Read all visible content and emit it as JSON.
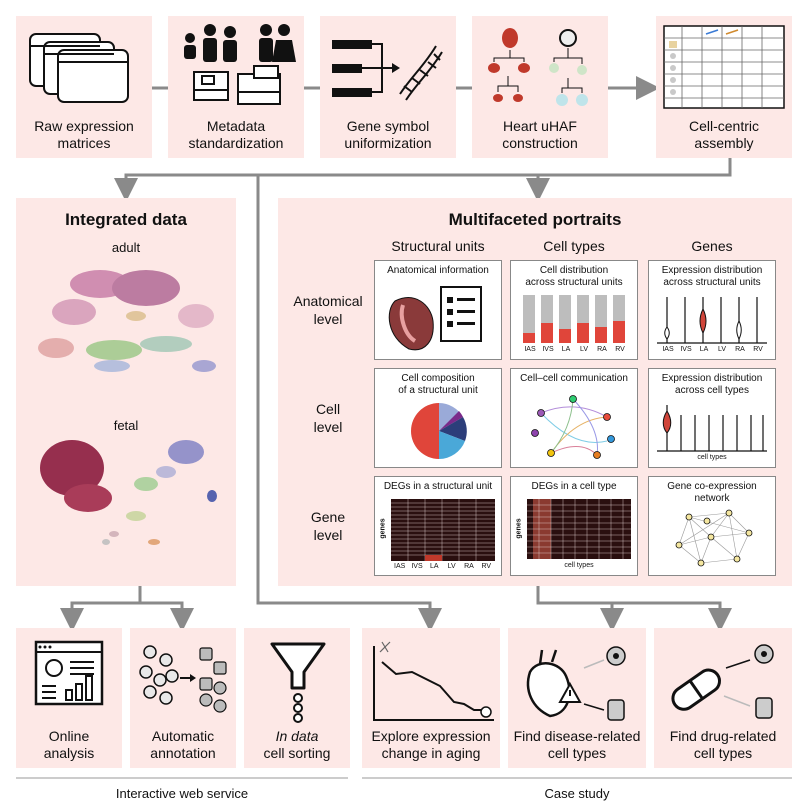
{
  "pipeline": [
    {
      "label_line1": "Raw expression",
      "label_line2": "matrices"
    },
    {
      "label_line1": "Metadata",
      "label_line2": "standardization"
    },
    {
      "label_line1": "Gene symbol",
      "label_line2": "uniformization"
    },
    {
      "label_line1": "Heart uHAF",
      "label_line2": "construction"
    },
    {
      "label_line1": "Cell-centric",
      "label_line2": "assembly"
    }
  ],
  "integrated": {
    "title": "Integrated data",
    "adult": "adult",
    "fetal": "fetal"
  },
  "portraits": {
    "title": "Multifaceted portraits",
    "columns": [
      "Structural units",
      "Cell types",
      "Genes"
    ],
    "rows": [
      {
        "line1": "Anatomical",
        "line2": "level"
      },
      {
        "line1": "Cell",
        "line2": "level"
      },
      {
        "line1": "Gene",
        "line2": "level"
      }
    ],
    "cards": {
      "anat_info": "Anatomical information",
      "cell_dist_1": "Cell distribution",
      "cell_dist_2": "across structural units",
      "expr_dist_1": "Expression distribution",
      "expr_dist_2": "across structural units",
      "cell_comp_1": "Cell composition",
      "cell_comp_2": "of a structural unit",
      "ccc": "Cell–cell communication",
      "expr_ct_1": "Expression distribution",
      "expr_ct_2": "across cell types",
      "expr_ct_axis": "cell types",
      "degs_su": "DEGs in a structural unit",
      "degs_ct": "DEGs in a cell type",
      "degs_ct_x": "cell types",
      "genes_axis": "genes",
      "coexp_1": "Gene co-expression",
      "coexp_2": "network"
    },
    "structural_units": [
      "IAS",
      "IVS",
      "LA",
      "LV",
      "RA",
      "RV"
    ]
  },
  "bottom": [
    {
      "line1": "Online",
      "line2": "analysis"
    },
    {
      "line1": "Automatic",
      "line2": "annotation"
    },
    {
      "line1_italic": "In data",
      "line2": "cell sorting"
    },
    {
      "line1": "Explore expression",
      "line2": "change in aging"
    },
    {
      "line1": "Find disease-related",
      "line2": "cell types"
    },
    {
      "line1": "Find drug-related",
      "line2": "cell types"
    }
  ],
  "sections": {
    "web": "Interactive web service",
    "case": "Case study"
  }
}
